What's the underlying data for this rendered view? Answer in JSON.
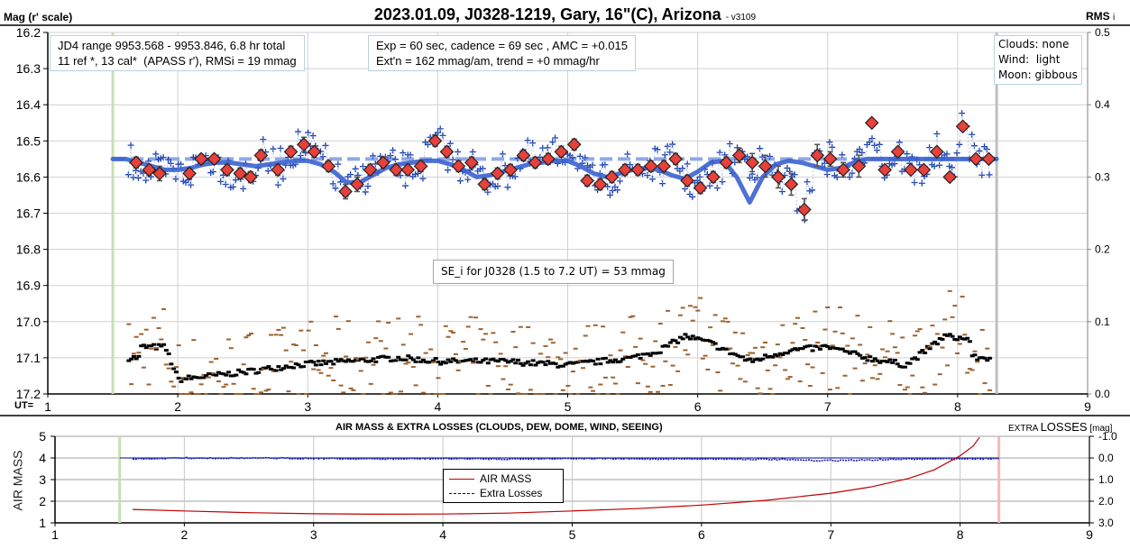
{
  "header": {
    "title": "2023.01.09, J0328-1219, Gary, 16\"(C), Arizona",
    "version": "- v3109",
    "left_axis_title": "Mag (r' scale)",
    "right_axis_title": "RMS",
    "right_axis_sub": "i",
    "ut_label": "UT="
  },
  "annotations": {
    "jd_range": "JD4 range 9953.568 - 9953.846, 6.8 hr total\n11 ref *, 13 cal*  (APASS r'), RMSi = 19 mmag",
    "exposure": "Exp = 60 sec, cadence = 69 sec , AMC = +0.015\nExt'n = 162 mmag/am, trend = +0 mmag/hr",
    "conditions": "Clouds: none\nWind:  light\nMoon: gibbous",
    "se": "SE_i for J0328 (1.5 to 7.2 UT) = 53 mmag"
  },
  "lower": {
    "title": "AIR MASS & EXTRA LOSSES (CLOUDS, DEW, DOME, WIND, SEEING)",
    "left_axis_title": "AIR MASS",
    "right_axis_title_small": "EXTRA ",
    "right_axis_title_big": "LOSSES",
    "right_axis_unit": " [mag]",
    "legend": [
      {
        "label": "AIR MASS",
        "color": "#c00000"
      },
      {
        "label": "Extra Losses",
        "color": "#000099"
      }
    ]
  },
  "chart_data": [
    {
      "type": "scatter",
      "title": "2023.01.09, J0328-1219, Gary, 16\"(C), Arizona",
      "xlabel": "UT",
      "ylabel": "Mag (r' scale)",
      "y2label": "RMS i",
      "xlim": [
        1,
        9
      ],
      "ylim": [
        17.2,
        16.2
      ],
      "y2lim": [
        0.0,
        0.5
      ],
      "x_ticks": [
        1,
        2,
        3,
        4,
        5,
        6,
        7,
        8,
        9
      ],
      "y_ticks": [
        "16.2",
        "16.3",
        "16.4",
        "16.5",
        "16.6",
        "16.7",
        "16.8",
        "16.9",
        "17.0",
        "17.1",
        "17.2"
      ],
      "y2_ticks": [
        "0.0",
        "0.1",
        "0.2",
        "0.3",
        "0.4",
        "0.5"
      ],
      "grid": true,
      "markers": {
        "start_ut": 1.5,
        "end_ut": 8.3
      },
      "reference_level": 16.55,
      "colors": {
        "diamond": "#e8403a",
        "raw": "#1a3fb0",
        "fit": "#3a62d0",
        "rms_black": "#000000",
        "rms_brown": "#9c6330",
        "start_line": "#c6e0b4",
        "end_line": "#bfbfbf"
      },
      "series": [
        {
          "name": "binned magnitudes",
          "x": [
            1.68,
            1.78,
            1.86,
            2.09,
            2.18,
            2.28,
            2.38,
            2.48,
            2.56,
            2.64,
            2.77,
            2.87,
            2.97,
            3.05,
            3.16,
            3.29,
            3.38,
            3.48,
            3.58,
            3.68,
            3.77,
            3.87,
            3.98,
            4.07,
            4.16,
            4.26,
            4.36,
            4.46,
            4.56,
            4.66,
            4.75,
            4.85,
            4.95,
            5.05,
            5.15,
            5.25,
            5.34,
            5.44,
            5.54,
            5.64,
            5.74,
            5.83,
            5.92,
            6.02,
            6.12,
            6.22,
            6.32,
            6.42,
            6.52,
            6.62,
            6.72,
            6.82,
            6.92,
            7.02,
            7.12,
            7.24,
            7.34,
            7.44,
            7.54,
            7.64,
            7.74,
            7.84,
            7.94,
            8.04,
            8.14,
            8.24
          ],
          "y": [
            16.56,
            16.58,
            16.59,
            16.59,
            16.55,
            16.55,
            16.58,
            16.59,
            16.6,
            16.54,
            16.58,
            16.53,
            16.51,
            16.53,
            16.57,
            16.64,
            16.62,
            16.58,
            16.56,
            16.58,
            16.58,
            16.57,
            16.5,
            16.53,
            16.57,
            16.56,
            16.62,
            16.59,
            16.58,
            16.54,
            16.56,
            16.55,
            16.53,
            16.51,
            16.61,
            16.62,
            16.6,
            16.58,
            16.58,
            16.57,
            16.57,
            16.55,
            16.61,
            16.63,
            16.6,
            16.56,
            16.54,
            16.56,
            16.57,
            16.6,
            16.62,
            16.69,
            16.54,
            16.55,
            16.58,
            16.57,
            16.45,
            16.58,
            16.53,
            16.58,
            16.58,
            16.53,
            16.6,
            16.46,
            16.55,
            16.55
          ],
          "err": [
            0.015,
            0.015,
            0.02,
            0.015,
            0.012,
            0.012,
            0.015,
            0.015,
            0.015,
            0.015,
            0.015,
            0.015,
            0.02,
            0.015,
            0.015,
            0.02,
            0.02,
            0.015,
            0.015,
            0.015,
            0.015,
            0.015,
            0.015,
            0.015,
            0.015,
            0.015,
            0.015,
            0.015,
            0.015,
            0.015,
            0.015,
            0.015,
            0.015,
            0.015,
            0.015,
            0.015,
            0.015,
            0.015,
            0.015,
            0.015,
            0.015,
            0.015,
            0.015,
            0.015,
            0.015,
            0.015,
            0.02,
            0.025,
            0.03,
            0.03,
            0.03,
            0.03,
            0.03,
            0.02,
            0.02,
            0.03,
            0.0,
            0.0,
            0.0,
            0.0,
            0.0,
            0.0,
            0.0,
            0.0,
            0.0,
            0.0
          ]
        },
        {
          "name": "fit",
          "x": [
            1.5,
            1.6,
            1.7,
            1.8,
            1.9,
            2.0,
            2.1,
            2.2,
            2.3,
            2.4,
            2.5,
            2.6,
            2.7,
            2.8,
            2.9,
            3.0,
            3.1,
            3.2,
            3.3,
            3.4,
            3.5,
            3.6,
            3.7,
            3.8,
            3.9,
            4.0,
            4.1,
            4.2,
            4.3,
            4.4,
            4.5,
            4.6,
            4.7,
            4.8,
            4.9,
            5.0,
            5.1,
            5.2,
            5.3,
            5.4,
            5.5,
            5.6,
            5.7,
            5.8,
            5.9,
            6.0,
            6.1,
            6.2,
            6.3,
            6.4,
            6.5,
            6.6,
            6.7,
            6.8,
            6.9,
            7.0,
            7.1,
            7.2,
            7.3,
            7.5,
            8.0,
            8.3
          ],
          "y": [
            16.55,
            16.55,
            16.56,
            16.57,
            16.58,
            16.58,
            16.575,
            16.565,
            16.56,
            16.56,
            16.565,
            16.57,
            16.565,
            16.56,
            16.555,
            16.555,
            16.565,
            16.585,
            16.615,
            16.615,
            16.595,
            16.575,
            16.565,
            16.56,
            16.555,
            16.555,
            16.565,
            16.58,
            16.6,
            16.595,
            16.585,
            16.575,
            16.565,
            16.56,
            16.555,
            16.555,
            16.57,
            16.59,
            16.6,
            16.59,
            16.58,
            16.575,
            16.58,
            16.595,
            16.605,
            16.585,
            16.56,
            16.555,
            16.6,
            16.67,
            16.6,
            16.565,
            16.555,
            16.56,
            16.57,
            16.58,
            16.575,
            16.56,
            16.55,
            16.55,
            16.55,
            16.55
          ]
        }
      ]
    },
    {
      "type": "line",
      "title": "AIR MASS & EXTRA LOSSES (CLOUDS, DEW, DOME, WIND, SEEING)",
      "xlabel": "",
      "ylabel": "AIR MASS",
      "y2label": "EXTRA LOSSES [mag]",
      "xlim": [
        1,
        9
      ],
      "ylim": [
        1,
        5
      ],
      "y2lim": [
        3.0,
        -1.0
      ],
      "x_ticks": [
        1,
        2,
        3,
        4,
        5,
        6,
        7,
        8,
        9
      ],
      "y_ticks": [
        "1",
        "2",
        "3",
        "4",
        "5"
      ],
      "y2_ticks": [
        "-1.0",
        "0.0",
        "1.0",
        "2.0",
        "3.0"
      ],
      "legend": "center-left",
      "series": [
        {
          "name": "AIR MASS",
          "x": [
            1.6,
            2.0,
            2.5,
            3.0,
            3.5,
            4.0,
            4.5,
            5.0,
            5.5,
            6.0,
            6.5,
            7.0,
            7.3,
            7.6,
            7.8,
            8.0,
            8.1,
            8.15
          ],
          "y": [
            1.62,
            1.55,
            1.47,
            1.42,
            1.4,
            1.41,
            1.45,
            1.55,
            1.66,
            1.82,
            2.04,
            2.37,
            2.65,
            3.05,
            3.45,
            4.1,
            4.55,
            4.95
          ]
        },
        {
          "name": "Extra Losses",
          "x": [
            1.5,
            1.6,
            2.0,
            3.0,
            3.5,
            4.0,
            4.5,
            5.0,
            5.5,
            6.0,
            6.5,
            6.9,
            7.3,
            7.5,
            7.7,
            8.0,
            8.3
          ],
          "y": [
            0.0,
            0.05,
            0.0,
            0.02,
            0.05,
            0.03,
            0.05,
            0.02,
            0.05,
            0.04,
            0.06,
            0.12,
            0.1,
            0.06,
            0.05,
            0.04,
            0.03
          ]
        }
      ]
    }
  ]
}
